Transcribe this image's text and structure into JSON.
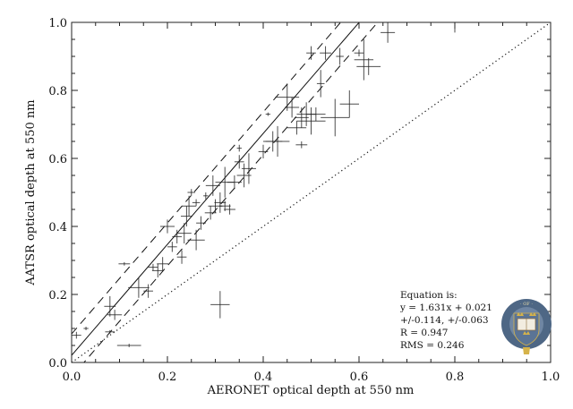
{
  "chart_data": {
    "type": "scatter",
    "title": "",
    "xlabel": "AERONET optical depth at 550 nm",
    "ylabel": "AATSR optical depth at 550 nm",
    "xlim": [
      0.0,
      1.0
    ],
    "ylim": [
      0.0,
      1.0
    ],
    "xticks": [
      "0.0",
      "0.2",
      "0.4",
      "0.6",
      "0.8",
      "1.0"
    ],
    "yticks": [
      "0.0",
      "0.2",
      "0.4",
      "0.6",
      "0.8",
      "1.0"
    ],
    "grid": false,
    "annotation": {
      "lines": [
        "Equation is:",
        "y = 1.631x + 0.021",
        "+/-0.114, +/-0.063",
        "R = 0.947",
        "RMS = 0.246"
      ]
    },
    "reference_lines": [
      {
        "name": "fit",
        "style": "solid",
        "slope": 1.631,
        "intercept": 0.021
      },
      {
        "name": "fit upper bound",
        "style": "dashed",
        "slope": 1.631,
        "intercept": 0.084
      },
      {
        "name": "fit lower bound",
        "style": "dashed",
        "slope": 1.631,
        "intercept": -0.042
      },
      {
        "name": "1:1 line",
        "style": "dotted",
        "slope": 1.0,
        "intercept": 0.0
      }
    ],
    "points": [
      {
        "x": 0.01,
        "y": 0.08,
        "xerr": 0.01,
        "yerr": 0.01
      },
      {
        "x": 0.03,
        "y": 0.1,
        "xerr": 0.005,
        "yerr": 0.005
      },
      {
        "x": 0.08,
        "y": 0.165,
        "xerr": 0.012,
        "yerr": 0.03
      },
      {
        "x": 0.09,
        "y": 0.14,
        "xerr": 0.015,
        "yerr": 0.015
      },
      {
        "x": 0.08,
        "y": 0.09,
        "xerr": 0.01,
        "yerr": 0.005
      },
      {
        "x": 0.12,
        "y": 0.05,
        "xerr": 0.025,
        "yerr": 0.005
      },
      {
        "x": 0.11,
        "y": 0.29,
        "xerr": 0.012,
        "yerr": 0.005
      },
      {
        "x": 0.14,
        "y": 0.22,
        "xerr": 0.022,
        "yerr": 0.03
      },
      {
        "x": 0.16,
        "y": 0.21,
        "xerr": 0.01,
        "yerr": 0.02
      },
      {
        "x": 0.17,
        "y": 0.28,
        "xerr": 0.01,
        "yerr": 0.01
      },
      {
        "x": 0.18,
        "y": 0.27,
        "xerr": 0.012,
        "yerr": 0.02
      },
      {
        "x": 0.19,
        "y": 0.29,
        "xerr": 0.012,
        "yerr": 0.02
      },
      {
        "x": 0.2,
        "y": 0.4,
        "xerr": 0.015,
        "yerr": 0.02
      },
      {
        "x": 0.21,
        "y": 0.34,
        "xerr": 0.01,
        "yerr": 0.015
      },
      {
        "x": 0.22,
        "y": 0.37,
        "xerr": 0.01,
        "yerr": 0.02
      },
      {
        "x": 0.23,
        "y": 0.31,
        "xerr": 0.01,
        "yerr": 0.02
      },
      {
        "x": 0.235,
        "y": 0.38,
        "xerr": 0.015,
        "yerr": 0.03
      },
      {
        "x": 0.24,
        "y": 0.43,
        "xerr": 0.012,
        "yerr": 0.03
      },
      {
        "x": 0.245,
        "y": 0.46,
        "xerr": 0.015,
        "yerr": 0.03
      },
      {
        "x": 0.25,
        "y": 0.5,
        "xerr": 0.008,
        "yerr": 0.01
      },
      {
        "x": 0.26,
        "y": 0.36,
        "xerr": 0.018,
        "yerr": 0.03
      },
      {
        "x": 0.26,
        "y": 0.47,
        "xerr": 0.008,
        "yerr": 0.01
      },
      {
        "x": 0.27,
        "y": 0.41,
        "xerr": 0.01,
        "yerr": 0.02
      },
      {
        "x": 0.28,
        "y": 0.49,
        "xerr": 0.005,
        "yerr": 0.01
      },
      {
        "x": 0.29,
        "y": 0.44,
        "xerr": 0.012,
        "yerr": 0.02
      },
      {
        "x": 0.295,
        "y": 0.52,
        "xerr": 0.015,
        "yerr": 0.03
      },
      {
        "x": 0.3,
        "y": 0.46,
        "xerr": 0.015,
        "yerr": 0.02
      },
      {
        "x": 0.31,
        "y": 0.47,
        "xerr": 0.012,
        "yerr": 0.03
      },
      {
        "x": 0.31,
        "y": 0.17,
        "xerr": 0.02,
        "yerr": 0.04
      },
      {
        "x": 0.32,
        "y": 0.53,
        "xerr": 0.02,
        "yerr": 0.045
      },
      {
        "x": 0.32,
        "y": 0.46,
        "xerr": 0.012,
        "yerr": 0.015
      },
      {
        "x": 0.33,
        "y": 0.45,
        "xerr": 0.012,
        "yerr": 0.015
      },
      {
        "x": 0.34,
        "y": 0.53,
        "xerr": 0.015,
        "yerr": 0.02
      },
      {
        "x": 0.35,
        "y": 0.59,
        "xerr": 0.01,
        "yerr": 0.02
      },
      {
        "x": 0.35,
        "y": 0.63,
        "xerr": 0.005,
        "yerr": 0.01
      },
      {
        "x": 0.36,
        "y": 0.55,
        "xerr": 0.015,
        "yerr": 0.035
      },
      {
        "x": 0.37,
        "y": 0.57,
        "xerr": 0.015,
        "yerr": 0.045
      },
      {
        "x": 0.4,
        "y": 0.62,
        "xerr": 0.01,
        "yerr": 0.02
      },
      {
        "x": 0.41,
        "y": 0.73,
        "xerr": 0.005,
        "yerr": 0.005
      },
      {
        "x": 0.42,
        "y": 0.65,
        "xerr": 0.02,
        "yerr": 0.03
      },
      {
        "x": 0.43,
        "y": 0.65,
        "xerr": 0.025,
        "yerr": 0.045
      },
      {
        "x": 0.45,
        "y": 0.78,
        "xerr": 0.025,
        "yerr": 0.04
      },
      {
        "x": 0.46,
        "y": 0.75,
        "xerr": 0.015,
        "yerr": 0.03
      },
      {
        "x": 0.47,
        "y": 0.69,
        "xerr": 0.02,
        "yerr": 0.02
      },
      {
        "x": 0.48,
        "y": 0.72,
        "xerr": 0.015,
        "yerr": 0.03
      },
      {
        "x": 0.48,
        "y": 0.64,
        "xerr": 0.012,
        "yerr": 0.01
      },
      {
        "x": 0.49,
        "y": 0.73,
        "xerr": 0.02,
        "yerr": 0.035
      },
      {
        "x": 0.5,
        "y": 0.91,
        "xerr": 0.01,
        "yerr": 0.02
      },
      {
        "x": 0.5,
        "y": 0.71,
        "xerr": 0.03,
        "yerr": 0.04
      },
      {
        "x": 0.51,
        "y": 0.73,
        "xerr": 0.02,
        "yerr": 0.02
      },
      {
        "x": 0.52,
        "y": 0.82,
        "xerr": 0.008,
        "yerr": 0.04
      },
      {
        "x": 0.53,
        "y": 0.91,
        "xerr": 0.012,
        "yerr": 0.02
      },
      {
        "x": 0.55,
        "y": 0.72,
        "xerr": 0.03,
        "yerr": 0.055
      },
      {
        "x": 0.56,
        "y": 0.9,
        "xerr": 0.008,
        "yerr": 0.025
      },
      {
        "x": 0.58,
        "y": 0.76,
        "xerr": 0.02,
        "yerr": 0.04
      },
      {
        "x": 0.6,
        "y": 0.91,
        "xerr": 0.01,
        "yerr": 0.01
      },
      {
        "x": 0.61,
        "y": 0.89,
        "xerr": 0.02,
        "yerr": 0.06
      },
      {
        "x": 0.62,
        "y": 0.87,
        "xerr": 0.025,
        "yerr": 0.025
      },
      {
        "x": 0.66,
        "y": 0.97,
        "xerr": 0.015,
        "yerr": 0.03
      },
      {
        "x": 0.8,
        "y": 1.0,
        "xerr": 0.07,
        "yerr": 0.03
      }
    ]
  },
  "logo": {
    "name": "University of Oxford crest",
    "ring_text": "UNIVERSITY · OF · OXFORD",
    "colors": {
      "ring": "#4e6785",
      "shield": "#6f86a3",
      "crown": "#d6b34a",
      "book": "#f2ede0"
    }
  }
}
